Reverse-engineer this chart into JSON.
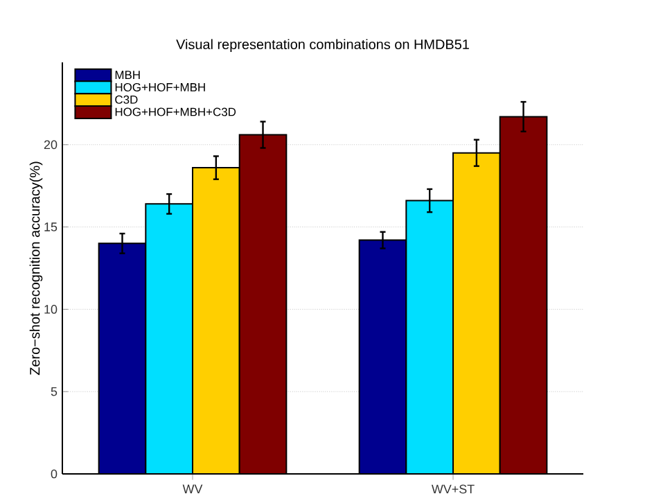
{
  "chart_data": {
    "type": "bar",
    "title": "Visual representation combinations on HMDB51",
    "ylabel": "Zero−shot recognition accuracy(%)",
    "categories": [
      "WV",
      "WV+ST"
    ],
    "series": [
      {
        "name": "MBH",
        "color": "#00008f",
        "values": [
          14.0,
          14.2
        ],
        "errors": [
          0.6,
          0.5
        ]
      },
      {
        "name": "HOG+HOF+MBH",
        "color": "#00dfff",
        "values": [
          16.4,
          16.6
        ],
        "errors": [
          0.6,
          0.7
        ]
      },
      {
        "name": "C3D",
        "color": "#ffcf00",
        "values": [
          18.6,
          19.5
        ],
        "errors": [
          0.7,
          0.8
        ]
      },
      {
        "name": "HOG+HOF+MBH+C3D",
        "color": "#7f0000",
        "values": [
          20.6,
          21.7
        ],
        "errors": [
          0.8,
          0.9
        ]
      }
    ],
    "ylim": [
      0,
      25
    ],
    "yticks": [
      0,
      5,
      10,
      15,
      20
    ],
    "grid": "y",
    "legend": "top left"
  }
}
